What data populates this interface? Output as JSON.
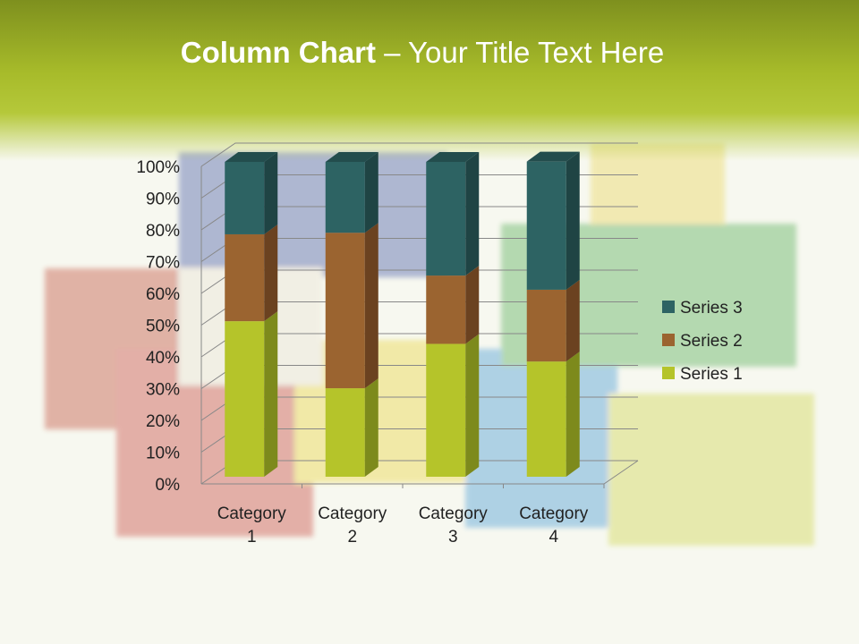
{
  "title": {
    "bold": "Column Chart",
    "rest": " – Your Title Text Here"
  },
  "chart_data": {
    "type": "bar",
    "stacking": "percent",
    "three_d": true,
    "categories": [
      "Category 1",
      "Category 2",
      "Category 3",
      "Category 4"
    ],
    "series": [
      {
        "name": "Series 1",
        "values": [
          49.4,
          28.1,
          42.2,
          36.6
        ],
        "color": "#b5c42a"
      },
      {
        "name": "Series 2",
        "values": [
          27.6,
          49.4,
          21.7,
          22.8
        ],
        "color": "#9b6430"
      },
      {
        "name": "Series 3",
        "values": [
          23.0,
          22.5,
          36.1,
          40.7
        ],
        "color": "#2d6363"
      }
    ],
    "yticks": [
      "0%",
      "10%",
      "20%",
      "30%",
      "40%",
      "50%",
      "60%",
      "70%",
      "80%",
      "90%",
      "100%"
    ],
    "ylim": [
      0,
      100
    ],
    "grid": true,
    "legend": "right"
  }
}
